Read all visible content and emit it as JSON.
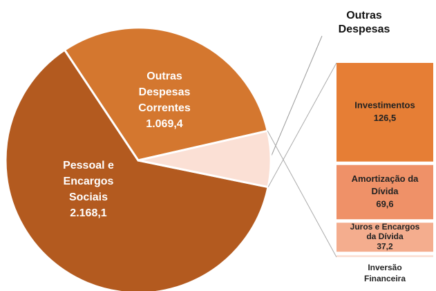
{
  "chart_data": {
    "type": "pie-of-bar",
    "pie": {
      "categories": [
        "Pessoal e Encargos Sociais",
        "Outras Despesas Correntes",
        "Outras Despesas"
      ],
      "values": [
        2168.1,
        1069.4,
        235.8
      ],
      "value_labels": [
        "2.168,1",
        "1.069,4",
        null
      ],
      "colors": [
        "#b35a1f",
        "#d4772f",
        "#fbe0d5"
      ]
    },
    "bar": {
      "categories": [
        "Investimentos",
        "Amortização da Dívida",
        "Juros e Encargos da Dívida",
        "Inversão Financeira"
      ],
      "values": [
        126.5,
        69.6,
        37.2,
        2.5
      ],
      "value_labels": [
        "126,5",
        "69,6",
        "37,2",
        null
      ],
      "colors": [
        "#e67e35",
        "#ef9168",
        "#f4ad8e",
        "#fbe0d5"
      ]
    }
  }
}
